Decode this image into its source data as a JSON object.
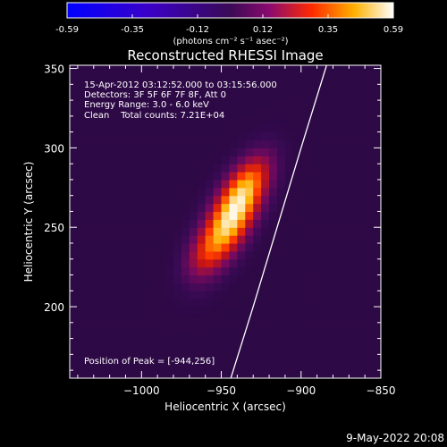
{
  "colorbar": {
    "ticks": [
      "-0.59",
      "-0.35",
      "-0.12",
      "0.12",
      "0.35",
      "0.59"
    ],
    "units": "(photons cm⁻² s⁻¹ asec⁻²)"
  },
  "plot": {
    "title": "Reconstructed RHESSI Image",
    "annotations": [
      "15-Apr-2012 03:12:52.000 to 03:15:56.000",
      "Detectors: 3F 5F 6F 7F 8F, Att 0",
      "Energy Range: 3.0 - 6.0 keV",
      "Clean    Total counts: 7.21E+04"
    ],
    "peak_label": "Position of Peak = [-944,256]"
  },
  "footer": {
    "timestamp": "9-May-2022 20:08"
  },
  "chart_data": {
    "type": "heatmap",
    "title": "Reconstructed RHESSI Image",
    "xlabel": "Heliocentric X (arcsec)",
    "ylabel": "Heliocentric Y (arcsec)",
    "xlim": [
      -1045,
      -850
    ],
    "ylim": [
      155,
      352
    ],
    "x_ticks": [
      -1000,
      -950,
      -900,
      -850
    ],
    "y_ticks": [
      200,
      250,
      300,
      350
    ],
    "x_tick_labels": [
      "−1000",
      "−950",
      "−900",
      "−850"
    ],
    "y_tick_labels": [
      "200",
      "250",
      "300",
      "350"
    ],
    "color_range": [
      -0.59,
      0.59
    ],
    "colormap": "hot-on-purple",
    "background_level": -0.05,
    "sources": [
      {
        "x": -944,
        "y": 256,
        "peak": 0.59,
        "sigma_major": 22,
        "sigma_minor": 9,
        "angle_deg": 62
      },
      {
        "x": -932,
        "y": 280,
        "peak": 0.2,
        "sigma_major": 14,
        "sigma_minor": 8,
        "angle_deg": 55
      },
      {
        "x": -962,
        "y": 232,
        "peak": 0.12,
        "sigma_major": 12,
        "sigma_minor": 8,
        "angle_deg": 60
      }
    ],
    "limb_curve": [
      {
        "x": -944,
        "y": 155
      },
      {
        "x": -930,
        "y": 200
      },
      {
        "x": -915,
        "y": 250
      },
      {
        "x": -900,
        "y": 300
      },
      {
        "x": -884,
        "y": 352
      }
    ]
  }
}
